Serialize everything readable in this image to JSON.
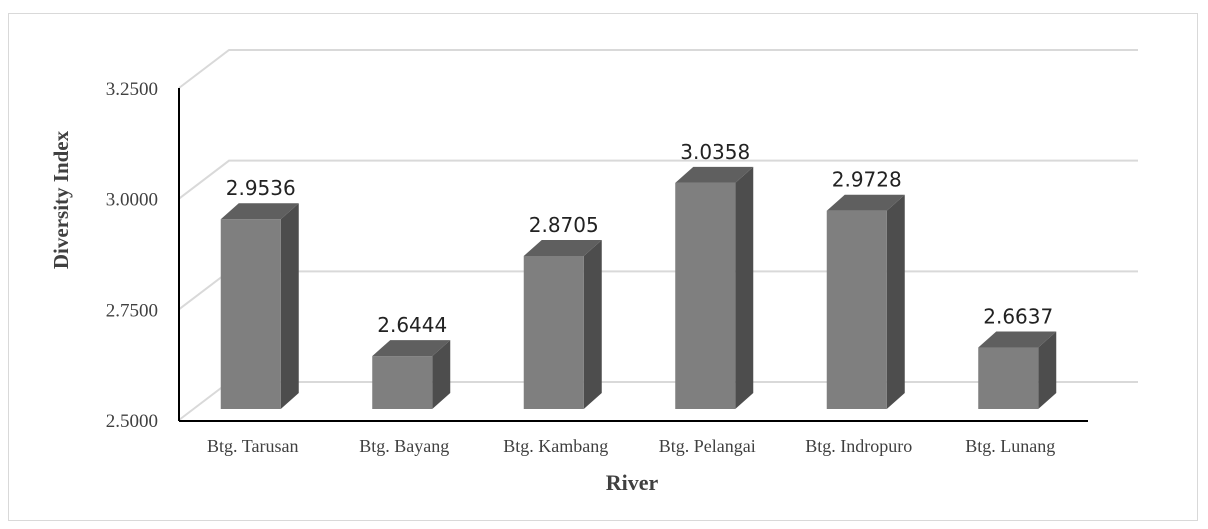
{
  "chart_data": {
    "type": "bar",
    "style": "3d-column",
    "title": "",
    "xlabel": "River",
    "ylabel": "Diversity Index",
    "categories": [
      "Btg. Tarusan",
      "Btg. Bayang",
      "Btg. Kambang",
      "Btg. Pelangai",
      "Btg. Indropuro",
      "Btg. Lunang"
    ],
    "values": [
      2.9536,
      2.6444,
      2.8705,
      3.0358,
      2.9728,
      2.6637
    ],
    "value_labels": [
      "2.9536",
      "2.6444",
      "2.8705",
      "3.0358",
      "2.9728",
      "2.6637"
    ],
    "yticks": [
      2.5,
      2.75,
      3.0,
      3.25
    ],
    "ytick_labels": [
      "2.5000",
      "2.7500",
      "3.0000",
      "3.2500"
    ],
    "ylim": [
      2.5,
      3.25
    ],
    "grid": true,
    "legend": "none",
    "colors": {
      "bar_front": "#7f7f7f",
      "bar_side": "#4d4d4d",
      "bar_top": "#5f5f5f",
      "grid": "#d9d9d9",
      "axis": "#000000",
      "text": "#404040"
    }
  }
}
